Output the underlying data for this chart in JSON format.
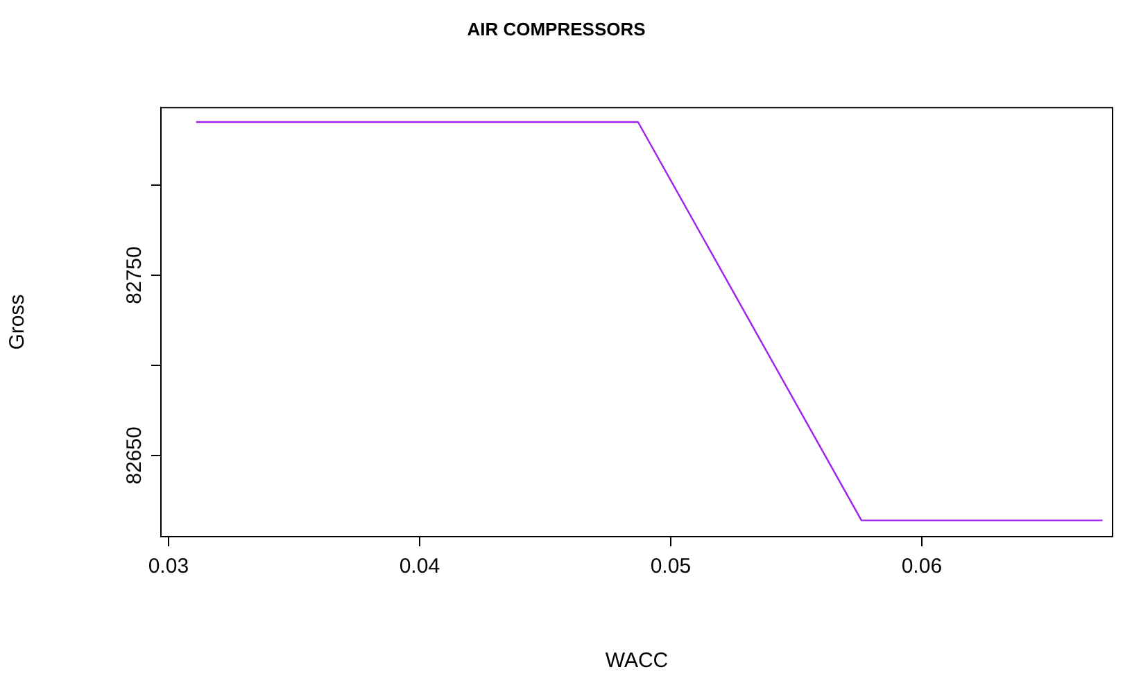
{
  "chart_data": {
    "type": "line",
    "title": "AIR COMPRESSORS",
    "xlabel": "WACC",
    "ylabel": "Gross",
    "x": [
      0.0311,
      0.0487,
      0.0576,
      0.0672
    ],
    "series": [
      {
        "color": "#a020f0",
        "values": [
          82835,
          82835,
          82614,
          82614
        ]
      }
    ],
    "xlim": [
      0.0297,
      0.0676
    ],
    "xticks": [
      0.03,
      0.04,
      0.05,
      0.06
    ],
    "ylim": [
      82605,
      82843
    ],
    "yticks": [
      82650,
      {
        "value": 82700,
        "label": null
      },
      82750,
      {
        "value": 82800,
        "label": null
      }
    ],
    "grid": false,
    "legend": false,
    "marker": "none",
    "line_style": "solid"
  }
}
